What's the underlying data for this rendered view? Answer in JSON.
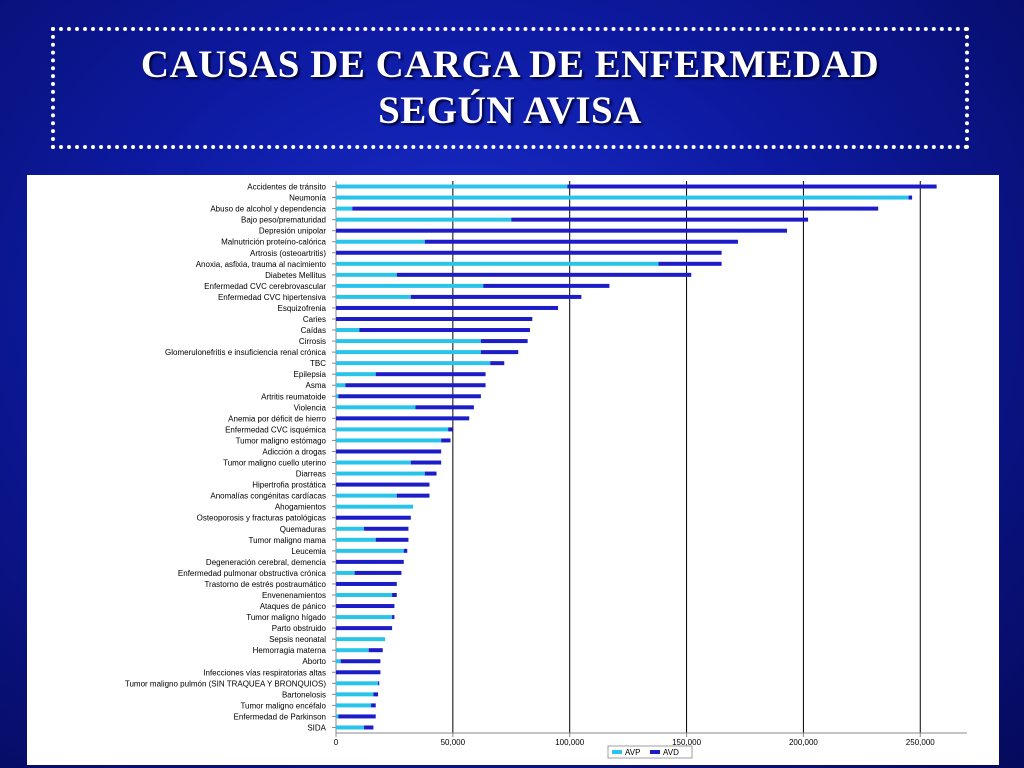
{
  "title": {
    "line1": "CAUSAS DE CARGA DE ENFERMEDAD",
    "line2": "SEGÚN AVISA"
  },
  "colors": {
    "avp": "#29c4ea",
    "avd": "#1c1cc8",
    "grid": "#000000"
  },
  "chart_data": {
    "type": "bar",
    "orientation": "horizontal",
    "stacked": true,
    "title": "",
    "xlabel": "",
    "ylabel": "",
    "xlim": [
      0,
      270000
    ],
    "x_ticks": [
      0,
      50000,
      100000,
      150000,
      200000,
      250000
    ],
    "x_tick_labels": [
      "0",
      "50,000",
      "100,000",
      "150,000",
      "200,000",
      "250,000"
    ],
    "grid": "vertical",
    "legend_position": "bottom-right",
    "categories": [
      "Accidentes de tránsito",
      "Neumonía",
      "Abuso de alcohol y dependencia",
      "Bajo peso/prematuridad",
      "Depresión unipolar",
      "Malnutrición proteíno-calórica",
      "Artrosis (osteoartritis)",
      "Anoxia, asfixia, trauma al nacimiento",
      "Diabetes Mellitus",
      "Enfermedad CVC cerebrovascular",
      "Enfermedad CVC hipertensiva",
      "Esquizofrenia",
      "Caries",
      "Caídas",
      "Cirrosis",
      "Glomerulonefritis e insuficiencia renal crónica",
      "TBC",
      "Epilepsia",
      "Asma",
      "Artritis reumatoide",
      "Violencia",
      "Anemia por déficit de hierro",
      "Enfermedad CVC isquémica",
      "Tumor maligno estómago",
      "Adicción a drogas",
      "Tumor maligno cuello uterino",
      "Diarreas",
      "Hipertrofia prostática",
      "Anomalías congénitas cardíacas",
      "Ahogamientos",
      "Osteoporosis y fracturas patológicas",
      "Quemaduras",
      "Tumor maligno mama",
      "Leucemia",
      "Degeneración cerebral, demencia",
      "Enfermedad pulmonar obstructiva crónica",
      "Trastorno de estrés postraumático",
      "Envenenamientos",
      "Ataques de pánico",
      "Tumor maligno hígado",
      "Parto obstruido",
      "Sepsis neonatal",
      "Hemorragia materna",
      "Aborto",
      "Infecciones vías respiratorias altas",
      "Tumor maligno pulmón (SIN TRAQUEA Y BRONQUIOS)",
      "Bartonelosis",
      "Tumor maligno encéfalo",
      "Enfermedad de Parkinson",
      "SIDA"
    ],
    "series": [
      {
        "name": "AVP",
        "values": [
          99000,
          245000,
          7000,
          75000,
          0,
          38000,
          0,
          138000,
          26000,
          63000,
          32000,
          0,
          0,
          10000,
          62000,
          62000,
          66000,
          17000,
          4000,
          1000,
          34000,
          0,
          48000,
          45000,
          0,
          32000,
          38000,
          0,
          26000,
          33000,
          0,
          12000,
          17000,
          29000,
          0,
          8000,
          0,
          24000,
          0,
          24000,
          0,
          21000,
          14000,
          2000,
          0,
          18000,
          16000,
          15000,
          1000,
          12000
        ]
      },
      {
        "name": "AVD",
        "values": [
          158000,
          1500,
          225000,
          127000,
          193000,
          134000,
          165000,
          27000,
          126000,
          54000,
          73000,
          95000,
          84000,
          73000,
          20000,
          16000,
          6000,
          47000,
          60000,
          61000,
          25000,
          57000,
          2000,
          4000,
          45000,
          13000,
          5000,
          40000,
          14000,
          0,
          32000,
          19000,
          14000,
          1500,
          29000,
          20000,
          26000,
          2000,
          25000,
          1000,
          24000,
          0,
          6000,
          17000,
          19000,
          500,
          2000,
          2000,
          16000,
          4000
        ]
      }
    ]
  }
}
